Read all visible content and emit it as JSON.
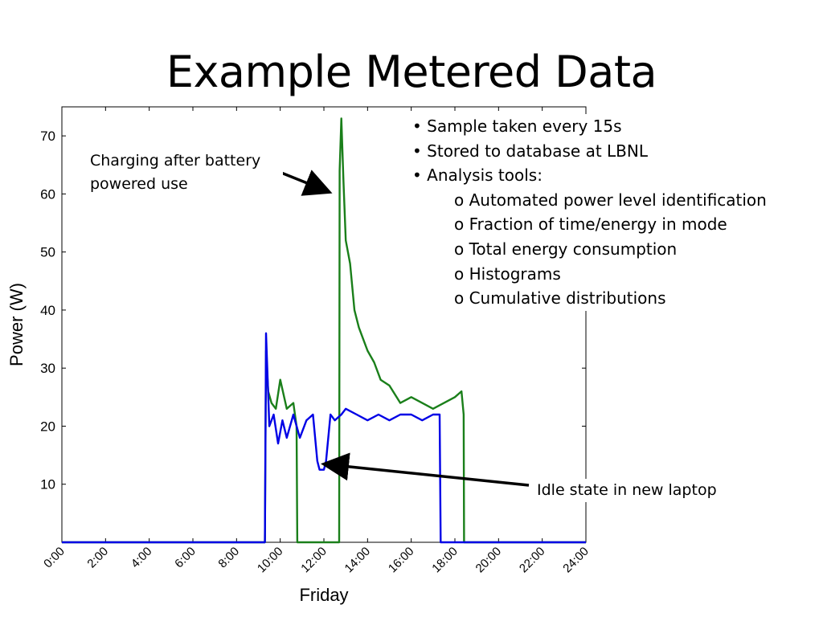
{
  "slide": {
    "title": "Example Metered Data",
    "bullets": [
      "• Sample taken every 15s",
      "• Stored to database at LBNL",
      "• Analysis tools:"
    ],
    "sub_bullets": [
      "o Automated power level identification",
      "o Fraction of time/energy in mode",
      "o Total energy consumption",
      "o Histograms",
      "o Cumulative distributions"
    ]
  },
  "annotations": {
    "charging": "Charging after battery powered use",
    "idle": "Idle state in new laptop"
  },
  "colors": {
    "green": "#1a7f1a",
    "blue": "#0000e6",
    "axis": "#000000"
  },
  "chart_data": {
    "type": "line",
    "xlabel": "Friday",
    "ylabel": "Power (W)",
    "xlim": [
      0,
      24
    ],
    "ylim": [
      0,
      75
    ],
    "xticks": [
      "0:00",
      "2:00",
      "4:00",
      "6:00",
      "8:00",
      "10:00",
      "12:00",
      "14:00",
      "16:00",
      "18:00",
      "20:00",
      "22:00",
      "24:00"
    ],
    "yticks": [
      10,
      20,
      30,
      40,
      50,
      60,
      70
    ],
    "series": [
      {
        "color": "green",
        "x": [
          0,
          9.3,
          9.35,
          9.45,
          9.6,
          9.8,
          10.0,
          10.3,
          10.6,
          10.75,
          10.78,
          12.7,
          12.72,
          12.8,
          12.9,
          13.0,
          13.2,
          13.4,
          13.6,
          13.8,
          14.0,
          14.3,
          14.6,
          15.0,
          15.5,
          16.0,
          16.5,
          17.0,
          17.5,
          18.0,
          18.3,
          18.4,
          18.42,
          24
        ],
        "y": [
          0,
          0,
          33,
          26,
          24,
          23,
          28,
          23,
          24,
          20,
          0,
          0,
          64,
          73,
          62,
          52,
          48,
          40,
          37,
          35,
          33,
          31,
          28,
          27,
          24,
          25,
          24,
          23,
          24,
          25,
          26,
          22,
          0,
          0
        ]
      },
      {
        "color": "blue",
        "x": [
          0,
          9.3,
          9.35,
          9.5,
          9.7,
          9.9,
          10.1,
          10.3,
          10.6,
          10.9,
          11.2,
          11.5,
          11.7,
          11.8,
          12.0,
          12.1,
          12.3,
          12.5,
          12.8,
          13.0,
          13.5,
          14.0,
          14.5,
          15.0,
          15.5,
          16.0,
          16.5,
          17.0,
          17.3,
          17.35,
          24
        ],
        "y": [
          0,
          0,
          36,
          20,
          22,
          17,
          21,
          18,
          22,
          18,
          21,
          22,
          14,
          12.5,
          12.5,
          14,
          22,
          21,
          22,
          23,
          22,
          21,
          22,
          21,
          22,
          22,
          21,
          22,
          22,
          0,
          0
        ]
      }
    ]
  }
}
